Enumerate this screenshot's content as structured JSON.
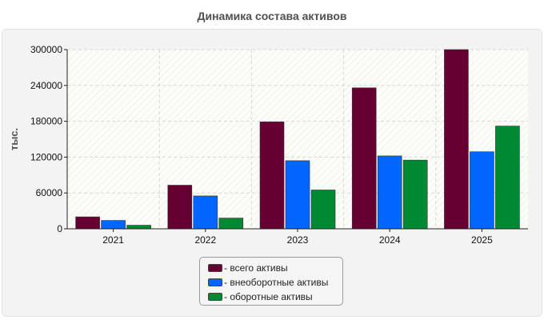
{
  "chart_data": {
    "type": "bar",
    "title": "Динамика состава активов",
    "ylabel": "тыс.",
    "xlabel": "",
    "categories": [
      "2021",
      "2022",
      "2023",
      "2024",
      "2025"
    ],
    "ylim": [
      0,
      300000
    ],
    "yticks": [
      0,
      60000,
      120000,
      180000,
      240000,
      300000
    ],
    "grid": true,
    "legend_position": "bottom",
    "series": [
      {
        "name": "- всего активы",
        "color": "#660033",
        "values": [
          20000,
          73000,
          179000,
          236000,
          300000
        ]
      },
      {
        "name": "- внеоборотные активы",
        "color": "#0066ff",
        "values": [
          14000,
          55000,
          114000,
          122000,
          129000
        ]
      },
      {
        "name": "- оборотные активы",
        "color": "#008833",
        "values": [
          6000,
          18000,
          65000,
          115000,
          172000
        ]
      }
    ]
  }
}
